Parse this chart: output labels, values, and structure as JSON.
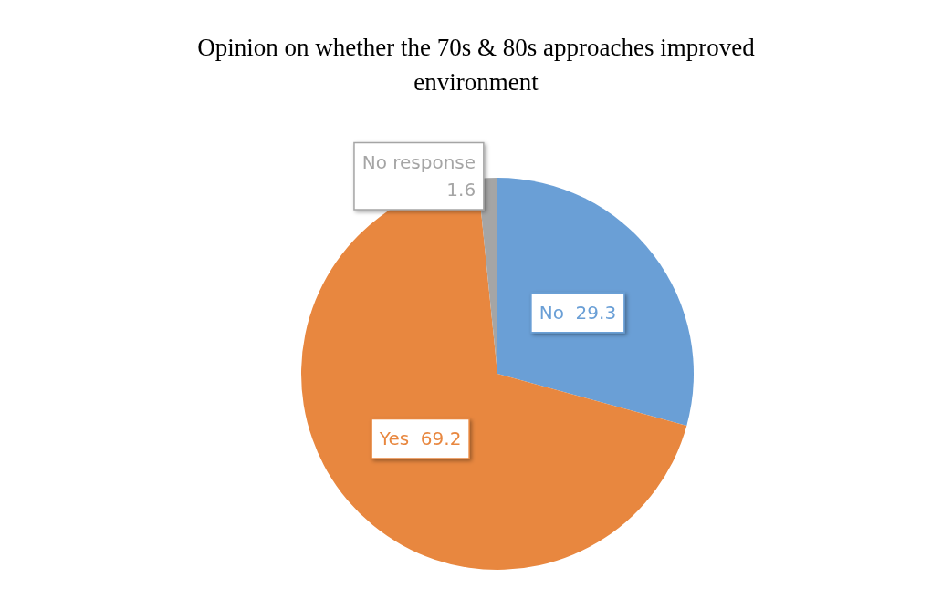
{
  "chart_data": {
    "type": "pie",
    "title": "Opinion on whether the 70s & 80s approaches improved\nenvironment",
    "categories": [
      "No",
      "Yes",
      "No response"
    ],
    "values": [
      29.3,
      69.2,
      1.6
    ],
    "colors": [
      "#6a9fd6",
      "#e8873f",
      "#a5a5a5"
    ],
    "data_labels": true,
    "legend": false
  }
}
